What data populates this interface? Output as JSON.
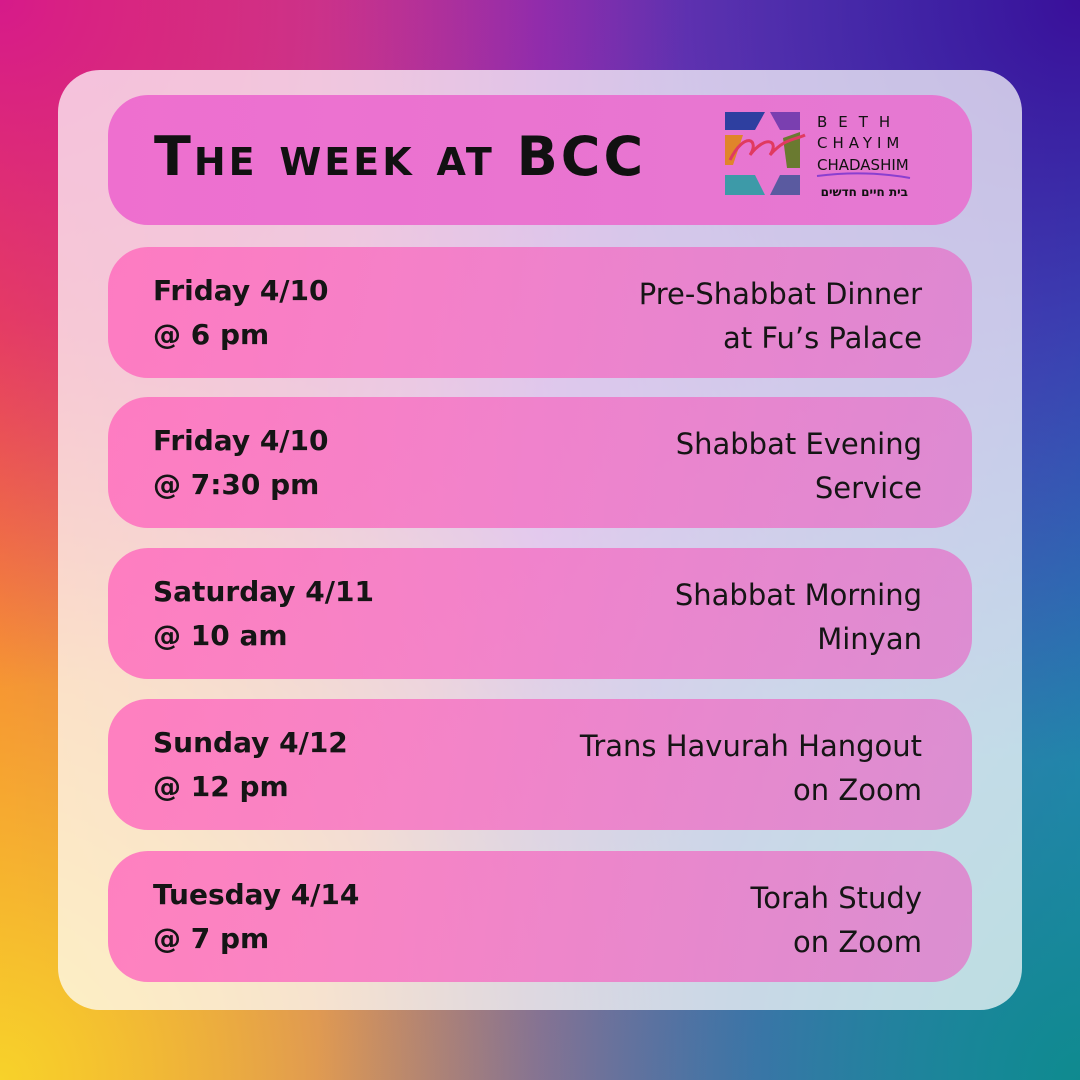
{
  "header": {
    "title": "The week at BCC",
    "logo": {
      "line1": "BETH",
      "line2": "CHAYIM",
      "line3": "CHADASHIM",
      "hebrew": "בית חיים חדשים",
      "script": "bcc"
    }
  },
  "events": [
    {
      "day": "Friday 4/10",
      "time": "@ 6 pm",
      "title_line1": "Pre-Shabbat Dinner",
      "title_line2": "at Fu’s Palace"
    },
    {
      "day": "Friday 4/10",
      "time": "@ 7:30 pm",
      "title_line1": "Shabbat Evening",
      "title_line2": "Service"
    },
    {
      "day": "Saturday 4/11",
      "time": "@ 10 am",
      "title_line1": "Shabbat Morning",
      "title_line2": "Minyan"
    },
    {
      "day": "Sunday 4/12",
      "time": "@ 12 pm",
      "title_line1": "Trans Havurah Hangout",
      "title_line2": "on Zoom"
    },
    {
      "day": "Tuesday 4/14",
      "time": "@ 7 pm",
      "title_line1": "Torah Study",
      "title_line2": "on Zoom"
    }
  ]
}
